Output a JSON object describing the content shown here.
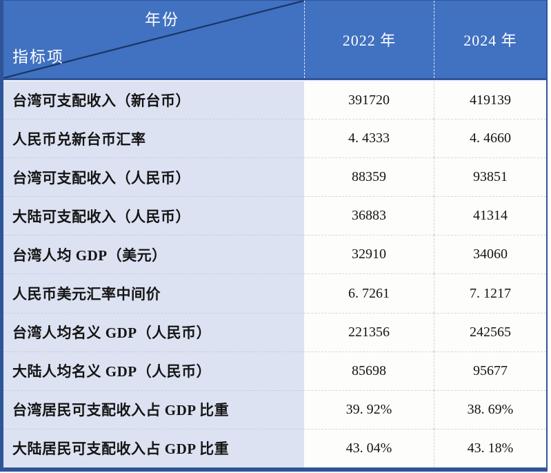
{
  "colors": {
    "header-blue": "#4171C1",
    "border-dark": "#2E5597",
    "diagonal-line": "#16325F",
    "label-bg": "#DCE2F1",
    "value-bg": "#FDFDFB"
  },
  "table": {
    "corner": {
      "year_axis_label": "年份",
      "indicator_axis_label": "指标项"
    },
    "columns": [
      "2022 年",
      "2024 年"
    ],
    "rows": [
      {
        "label": "台湾可支配收入（新台币）",
        "y2022": "391720",
        "y2024": "419139"
      },
      {
        "label": "人民币兑新台币汇率",
        "y2022": "4. 4333",
        "y2024": "4. 4660"
      },
      {
        "label": "台湾可支配收入（人民币）",
        "y2022": "88359",
        "y2024": "93851"
      },
      {
        "label": "大陆可支配收入（人民币）",
        "y2022": "36883",
        "y2024": "41314"
      },
      {
        "label": "台湾人均 GDP（美元）",
        "y2022": "32910",
        "y2024": "34060"
      },
      {
        "label": "人民币美元汇率中间价",
        "y2022": "6. 7261",
        "y2024": "7. 1217"
      },
      {
        "label": "台湾人均名义 GDP（人民币）",
        "y2022": "221356",
        "y2024": "242565"
      },
      {
        "label": "大陆人均名义 GDP（人民币）",
        "y2022": "85698",
        "y2024": "95677"
      },
      {
        "label": "台湾居民可支配收入占 GDP 比重",
        "y2022": "39. 92%",
        "y2024": "38. 69%"
      },
      {
        "label": "大陆居民可支配收入占 GDP 比重",
        "y2022": "43. 04%",
        "y2024": "43. 18%"
      }
    ]
  },
  "chart_data": {
    "type": "table",
    "column_header": "年份",
    "row_header": "指标项",
    "columns": [
      "2022 年",
      "2024 年"
    ],
    "rows": [
      {
        "indicator": "台湾可支配收入（新台币）",
        "2022": 391720,
        "2024": 419139
      },
      {
        "indicator": "人民币兑新台币汇率",
        "2022": 4.4333,
        "2024": 4.466
      },
      {
        "indicator": "台湾可支配收入（人民币）",
        "2022": 88359,
        "2024": 93851
      },
      {
        "indicator": "大陆可支配收入（人民币）",
        "2022": 36883,
        "2024": 41314
      },
      {
        "indicator": "台湾人均 GDP（美元）",
        "2022": 32910,
        "2024": 34060
      },
      {
        "indicator": "人民币美元汇率中间价",
        "2022": 6.7261,
        "2024": 7.1217
      },
      {
        "indicator": "台湾人均名义 GDP（人民币）",
        "2022": 221356,
        "2024": 242565
      },
      {
        "indicator": "大陆人均名义 GDP（人民币）",
        "2022": 85698,
        "2024": 95677
      },
      {
        "indicator": "台湾居民可支配收入占 GDP 比重",
        "2022": "39.92%",
        "2024": "38.69%"
      },
      {
        "indicator": "大陆居民可支配收入占 GDP 比重",
        "2022": "43.04%",
        "2024": "43.18%"
      }
    ]
  }
}
